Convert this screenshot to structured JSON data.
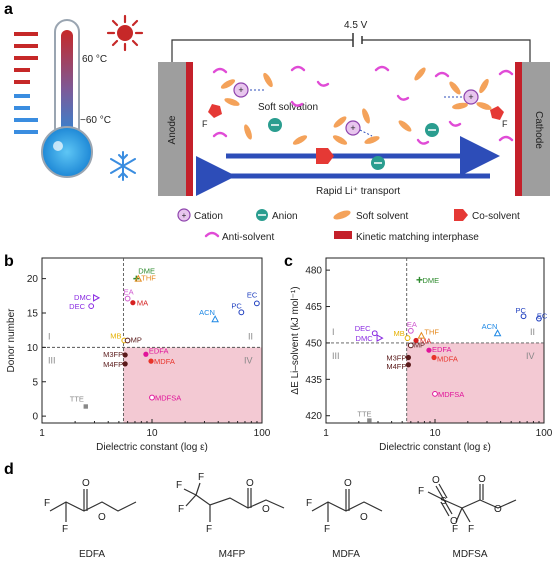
{
  "panel_a": {
    "label": "a",
    "temp_high": "60 °C",
    "temp_low": "−60 °C",
    "voltage": "4.5 V",
    "anode": "Anode",
    "cathode": "Cathode",
    "soft_solvation": "Soft solvation",
    "rapid_transport": "Rapid Li⁺ transport",
    "f_left": "F",
    "f_right": "F",
    "legend": {
      "cation": "Cation",
      "anion": "Anion",
      "soft_solvent": "Soft solvent",
      "co_solvent": "Co-solvent",
      "anti_solvent": "Anti-solvent",
      "interphase": "Kinetic matching interphase"
    }
  },
  "chart_data": [
    {
      "panel": "b",
      "type": "scatter",
      "xlabel": "Dielectric constant (log ε)",
      "ylabel": "Donor number",
      "xscale": "log",
      "xlim": [
        1,
        100
      ],
      "ylim": [
        -1,
        23
      ],
      "xticks": [
        "1",
        "10",
        "100"
      ],
      "yticks": [
        "0",
        "5",
        "10",
        "15",
        "20"
      ],
      "threshold_x": 5.5,
      "threshold_y": 10,
      "quadrant_labels": [
        "I",
        "II",
        "III",
        "IV"
      ],
      "points": [
        {
          "name": "DME",
          "x": 7.2,
          "y": 20.0,
          "color": "#2e8b2e",
          "marker": "plus"
        },
        {
          "name": "THF",
          "x": 7.5,
          "y": 20.0,
          "color": "#e58a1f",
          "marker": "tri"
        },
        {
          "name": "EA",
          "x": 6.0,
          "y": 17.1,
          "color": "#d05ad0",
          "marker": "circle-open"
        },
        {
          "name": "MA",
          "x": 6.7,
          "y": 16.5,
          "color": "#d62020",
          "marker": "circle"
        },
        {
          "name": "DMC",
          "x": 3.1,
          "y": 17.2,
          "color": "#8a2be2",
          "marker": "tri-right"
        },
        {
          "name": "DEC",
          "x": 2.8,
          "y": 16.0,
          "color": "#8a2be2",
          "marker": "circle-open"
        },
        {
          "name": "ACN",
          "x": 37.5,
          "y": 14.1,
          "color": "#1e88e5",
          "marker": "tri"
        },
        {
          "name": "PC",
          "x": 64.9,
          "y": 15.1,
          "color": "#1f3fbf",
          "marker": "circle-open"
        },
        {
          "name": "EC",
          "x": 89.8,
          "y": 16.4,
          "color": "#1f3fbf",
          "marker": "circle-open"
        },
        {
          "name": "MB",
          "x": 5.6,
          "y": 11.0,
          "color": "#e5b000",
          "marker": "circle-open"
        },
        {
          "name": "MP",
          "x": 6.0,
          "y": 11.0,
          "color": "#5a1a1a",
          "marker": "circle-open"
        },
        {
          "name": "EDFA",
          "x": 8.8,
          "y": 9.0,
          "color": "#e0149a",
          "marker": "circle"
        },
        {
          "name": "MDFA",
          "x": 9.8,
          "y": 8.0,
          "color": "#e8332a",
          "marker": "circle"
        },
        {
          "name": "M3FP",
          "x": 5.7,
          "y": 8.9,
          "color": "#5a1a1a",
          "marker": "circle"
        },
        {
          "name": "M4FP",
          "x": 5.7,
          "y": 7.6,
          "color": "#5a1a1a",
          "marker": "circle"
        },
        {
          "name": "MDFSA",
          "x": 10.0,
          "y": 2.7,
          "color": "#e0149a",
          "marker": "circle-open"
        },
        {
          "name": "TTE",
          "x": 2.5,
          "y": 1.4,
          "color": "#888888",
          "marker": "square"
        }
      ]
    },
    {
      "panel": "c",
      "type": "scatter",
      "xlabel": "Dielectric constant (log ε)",
      "ylabel": "ΔE Li–solvent (kJ mol⁻¹)",
      "xscale": "log",
      "xlim": [
        1,
        100
      ],
      "ylim": [
        417,
        485
      ],
      "xticks": [
        "1",
        "10",
        "100"
      ],
      "yticks": [
        "420",
        "435",
        "450",
        "465",
        "480"
      ],
      "threshold_x": 5.5,
      "threshold_y": 450,
      "quadrant_labels": [
        "I",
        "II",
        "III",
        "IV"
      ],
      "points": [
        {
          "name": "DME",
          "x": 7.2,
          "y": 476,
          "color": "#2e8b2e",
          "marker": "plus"
        },
        {
          "name": "EA",
          "x": 6.0,
          "y": 455,
          "color": "#d05ad0",
          "marker": "circle-open"
        },
        {
          "name": "THF",
          "x": 7.5,
          "y": 453,
          "color": "#e58a1f",
          "marker": "tri"
        },
        {
          "name": "MA",
          "x": 6.7,
          "y": 451,
          "color": "#d62020",
          "marker": "circle"
        },
        {
          "name": "MB",
          "x": 5.6,
          "y": 452,
          "color": "#e5b000",
          "marker": "circle-open"
        },
        {
          "name": "DEC",
          "x": 2.8,
          "y": 454,
          "color": "#8a2be2",
          "marker": "circle-open"
        },
        {
          "name": "DMC",
          "x": 3.1,
          "y": 452,
          "color": "#8a2be2",
          "marker": "tri-right"
        },
        {
          "name": "ACN",
          "x": 37.5,
          "y": 454,
          "color": "#1e88e5",
          "marker": "tri"
        },
        {
          "name": "PC",
          "x": 64.9,
          "y": 461,
          "color": "#1f3fbf",
          "marker": "circle-open"
        },
        {
          "name": "EC",
          "x": 89.8,
          "y": 460,
          "color": "#1f3fbf",
          "marker": "circle-open"
        },
        {
          "name": "MP",
          "x": 6.0,
          "y": 449,
          "color": "#5a1a1a",
          "marker": "circle-open"
        },
        {
          "name": "EDFA",
          "x": 8.8,
          "y": 447,
          "color": "#e0149a",
          "marker": "circle"
        },
        {
          "name": "MDFA",
          "x": 9.8,
          "y": 444,
          "color": "#e8332a",
          "marker": "circle"
        },
        {
          "name": "M3FP",
          "x": 5.7,
          "y": 444,
          "color": "#5a1a1a",
          "marker": "circle"
        },
        {
          "name": "M4FP",
          "x": 5.7,
          "y": 441,
          "color": "#5a1a1a",
          "marker": "circle"
        },
        {
          "name": "MDFSA",
          "x": 10.0,
          "y": 429,
          "color": "#e0149a",
          "marker": "circle-open"
        },
        {
          "name": "TTE",
          "x": 2.5,
          "y": 418,
          "color": "#888888",
          "marker": "square"
        }
      ]
    }
  ],
  "panel_d": {
    "label": "d",
    "molecules": [
      {
        "name": "EDFA"
      },
      {
        "name": "M4FP"
      },
      {
        "name": "MDFA"
      },
      {
        "name": "MDFSA"
      }
    ],
    "atom_F": "F",
    "atom_O": "O",
    "atom_S": "S"
  }
}
